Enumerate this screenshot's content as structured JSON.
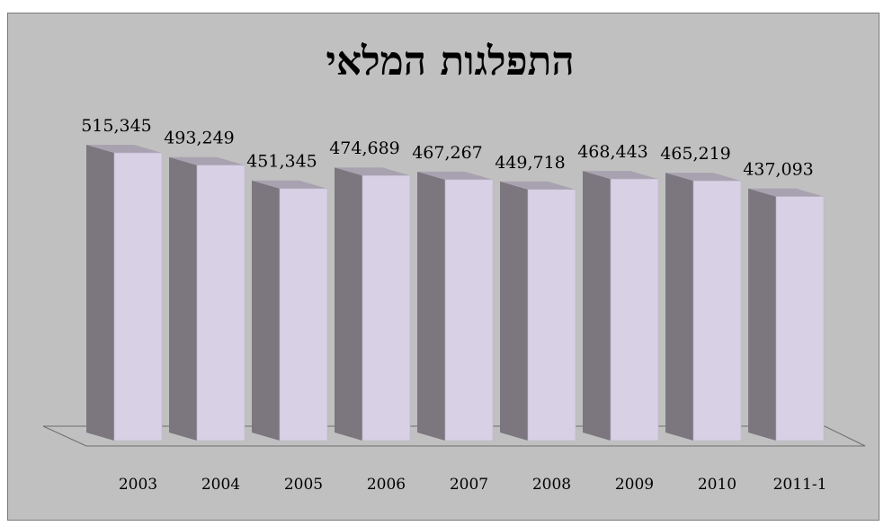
{
  "colors": {
    "background": "#c0c0c0",
    "bar_front": "#d8d0e4",
    "bar_side": "#7c767f",
    "bar_top": "#a8a2b0",
    "floor_line": "#6e6e6e"
  },
  "chart_data": {
    "type": "bar",
    "title": "התפלגות המלאי",
    "xlabel": "",
    "ylabel": "",
    "style": "3d-column",
    "grid": false,
    "legend": "none",
    "categories": [
      "2003",
      "2004",
      "2005",
      "2006",
      "2007",
      "2008",
      "2009",
      "2010",
      "2011-1"
    ],
    "value_labels": [
      "515,345",
      "493,249",
      "451,345",
      "474,689",
      "467,267",
      "449,718",
      "468,443",
      "465,219",
      "437,093"
    ],
    "values": [
      515345,
      493249,
      451345,
      474689,
      467267,
      449718,
      468443,
      465219,
      437093
    ]
  }
}
